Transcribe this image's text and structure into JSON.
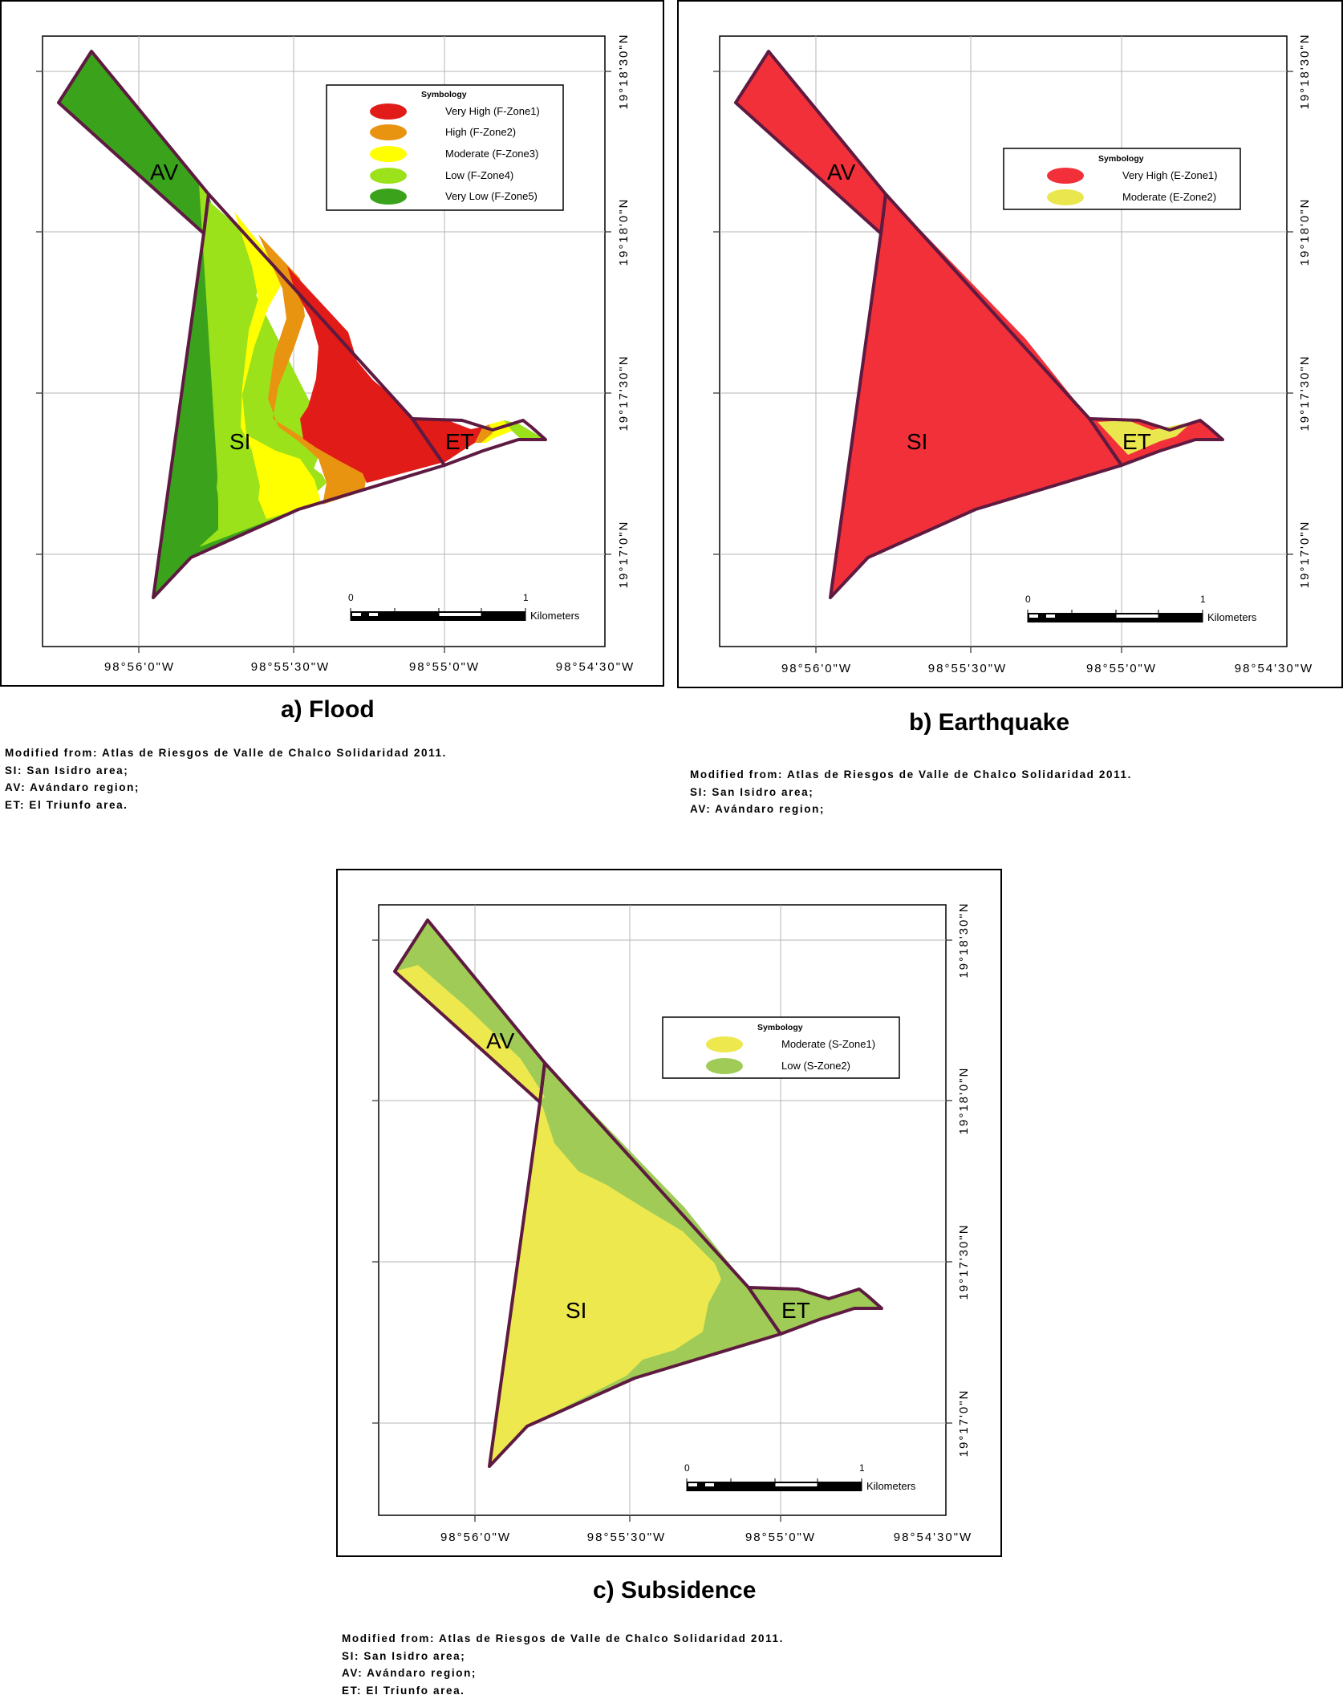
{
  "maps": {
    "flood": {
      "caption": "a) Flood",
      "region_labels": {
        "av": "AV",
        "si": "SI",
        "et": "ET"
      },
      "lon_labels": [
        "98°56'0\"W",
        "98°55'30\"W",
        "98°55'0\"W",
        "98°54'30\"W"
      ],
      "lat_labels": [
        "19°18'30\"N",
        "19°18'0\"N",
        "19°17'30\"N",
        "19°17'0\"N"
      ],
      "legend": {
        "title": "Symbology",
        "items": [
          {
            "label": "Very High (F-Zone1)",
            "color": "#e11b17"
          },
          {
            "label": "High (F-Zone2)",
            "color": "#e89411"
          },
          {
            "label": "Moderate (F-Zone3)",
            "color": "#ffff00"
          },
          {
            "label": "Low (F-Zone4)",
            "color": "#9be21a"
          },
          {
            "label": "Very Low (F-Zone5)",
            "color": "#3aa31b"
          }
        ]
      },
      "scale": {
        "start": "0",
        "end": "1",
        "unit": "Kilometers"
      },
      "notes": [
        "Modified from: Atlas de Riesgos de Valle de Chalco Solidaridad 2011.",
        "SI: San Isidro area;",
        "AV: Avándaro region;",
        "ET: El Triunfo area."
      ]
    },
    "earthquake": {
      "caption": "b) Earthquake",
      "region_labels": {
        "av": "AV",
        "si": "SI",
        "et": "ET"
      },
      "lon_labels": [
        "98°56'0\"W",
        "98°55'30\"W",
        "98°55'0\"W",
        "98°54'30\"W"
      ],
      "lat_labels": [
        "19°18'30\"N",
        "19°18'0\"N",
        "19°17'30\"N",
        "19°17'0\"N"
      ],
      "legend": {
        "title": "Symbology",
        "items": [
          {
            "label": "Very High (E-Zone1)",
            "color": "#f2303a"
          },
          {
            "label": "Moderate (E-Zone2)",
            "color": "#eae64d"
          }
        ]
      },
      "scale": {
        "start": "0",
        "end": "1",
        "unit": "Kilometers"
      },
      "notes": [
        "Modified from: Atlas de Riesgos de Valle de Chalco Solidaridad 2011.",
        "SI: San Isidro area;",
        "AV: Avándaro region;"
      ]
    },
    "subsidence": {
      "caption": "c) Subsidence",
      "region_labels": {
        "av": "AV",
        "si": "SI",
        "et": "ET"
      },
      "lon_labels": [
        "98°56'0\"W",
        "98°55'30\"W",
        "98°55'0\"W",
        "98°54'30\"W"
      ],
      "lat_labels": [
        "19°18'30\"N",
        "19°18'0\"N",
        "19°17'30\"N",
        "19°17'0\"N"
      ],
      "legend": {
        "title": "Symbology",
        "items": [
          {
            "label": "Moderate (S-Zone1)",
            "color": "#ece84e"
          },
          {
            "label": "Low (S-Zone2)",
            "color": "#9fcb56"
          }
        ]
      },
      "scale": {
        "start": "0",
        "end": "1",
        "unit": "Kilometers"
      },
      "notes": [
        "Modified from: Atlas de Riesgos de Valle de Chalco Solidaridad 2011.",
        "SI: San Isidro area;",
        "AV: Avándaro region;",
        "ET: El Triunfo area."
      ]
    }
  },
  "colors": {
    "boundary": "#5e1a40",
    "grid": "#b5b5b5"
  }
}
